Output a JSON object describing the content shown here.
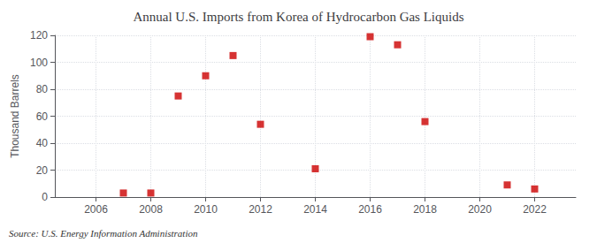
{
  "chart_data": {
    "type": "scatter",
    "title": "Annual U.S. Imports from Korea of Hydrocarbon Gas Liquids",
    "ylabel": "Thousand Barrels",
    "annotations": [
      "Source: U.S. Energy Information Administration"
    ],
    "x": [
      2007,
      2008,
      2009,
      2010,
      2011,
      2012,
      2014,
      2016,
      2017,
      2018,
      2021,
      2022
    ],
    "values": [
      3,
      3,
      75,
      90,
      105,
      54,
      21,
      119,
      113,
      56,
      9,
      6
    ],
    "color": "#cc0000",
    "marker": "square",
    "xlim": [
      2004.5,
      2023.5
    ],
    "ylim": [
      0,
      120
    ],
    "xticks": [
      2006,
      2008,
      2010,
      2012,
      2014,
      2016,
      2018,
      2020,
      2022
    ],
    "yticks": [
      0,
      20,
      40,
      60,
      80,
      100,
      120
    ],
    "grid": true
  }
}
